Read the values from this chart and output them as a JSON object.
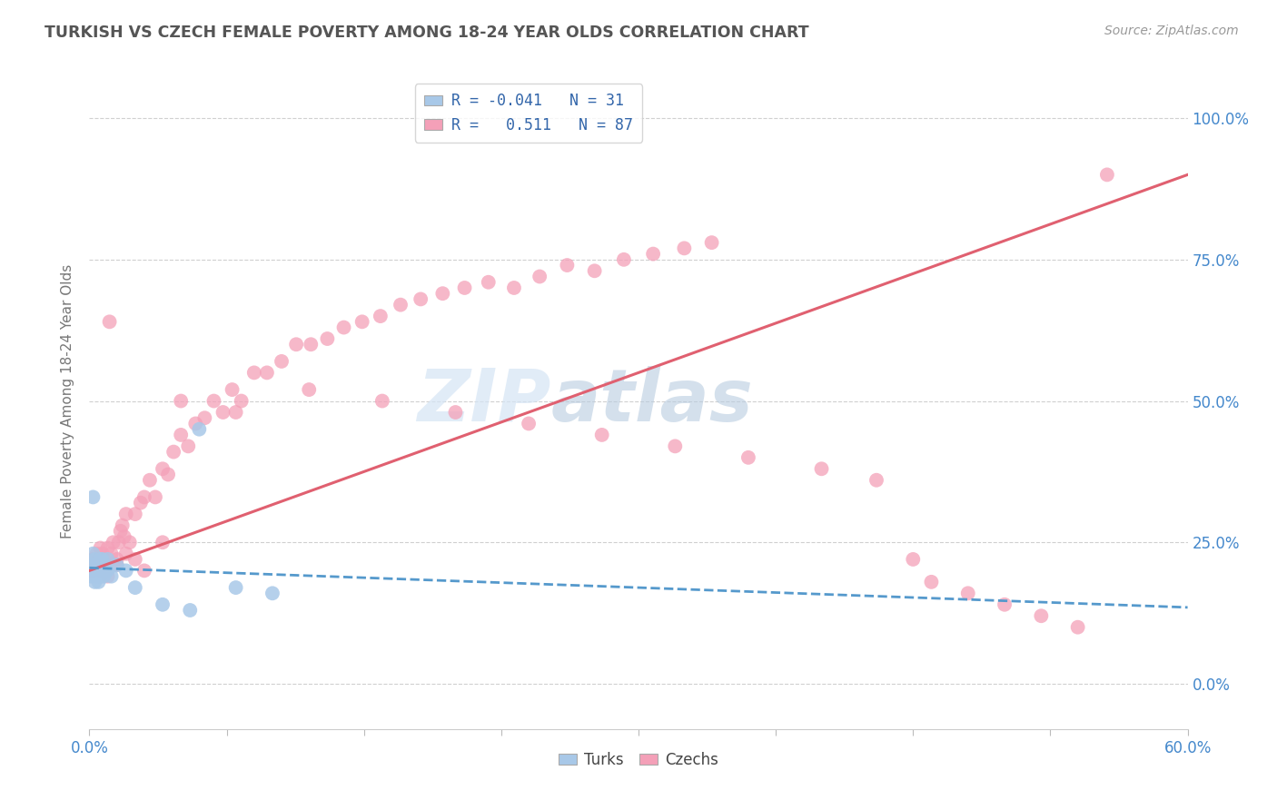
{
  "title": "TURKISH VS CZECH FEMALE POVERTY AMONG 18-24 YEAR OLDS CORRELATION CHART",
  "source": "Source: ZipAtlas.com",
  "ylabel": "Female Poverty Among 18-24 Year Olds",
  "legend_turks": "Turks",
  "legend_czechs": "Czechs",
  "R_turks": -0.041,
  "N_turks": 31,
  "R_czechs": 0.511,
  "N_czechs": 87,
  "turks_color": "#a8c8e8",
  "czechs_color": "#f4a0b8",
  "turks_line_color": "#5599cc",
  "czechs_line_color": "#e06070",
  "watermark_zip": "ZIP",
  "watermark_atlas": "atlas",
  "watermark_color_zip": "#d0dff0",
  "watermark_color_atlas": "#b8cce8",
  "background_color": "#ffffff",
  "xlim": [
    0.0,
    0.6
  ],
  "ylim": [
    -0.08,
    1.08
  ],
  "title_color": "#555555",
  "source_color": "#999999",
  "axis_label_color": "#4488cc",
  "legend_text_color": "#3366aa",
  "turks_scatter_x": [
    0.001,
    0.001,
    0.002,
    0.002,
    0.003,
    0.003,
    0.003,
    0.004,
    0.004,
    0.005,
    0.005,
    0.005,
    0.006,
    0.006,
    0.006,
    0.007,
    0.007,
    0.008,
    0.008,
    0.009,
    0.01,
    0.01,
    0.012,
    0.015,
    0.02,
    0.025,
    0.04,
    0.055,
    0.06,
    0.08,
    0.1
  ],
  "turks_scatter_y": [
    0.19,
    0.21,
    0.23,
    0.33,
    0.2,
    0.22,
    0.18,
    0.21,
    0.19,
    0.2,
    0.21,
    0.18,
    0.22,
    0.19,
    0.21,
    0.2,
    0.22,
    0.21,
    0.19,
    0.2,
    0.22,
    0.2,
    0.19,
    0.21,
    0.2,
    0.17,
    0.14,
    0.13,
    0.45,
    0.17,
    0.16
  ],
  "czechs_scatter_x": [
    0.001,
    0.002,
    0.003,
    0.004,
    0.005,
    0.006,
    0.007,
    0.008,
    0.009,
    0.01,
    0.011,
    0.012,
    0.013,
    0.015,
    0.016,
    0.017,
    0.018,
    0.019,
    0.02,
    0.022,
    0.025,
    0.028,
    0.03,
    0.033,
    0.036,
    0.04,
    0.043,
    0.046,
    0.05,
    0.054,
    0.058,
    0.063,
    0.068,
    0.073,
    0.078,
    0.083,
    0.09,
    0.097,
    0.105,
    0.113,
    0.121,
    0.13,
    0.139,
    0.149,
    0.159,
    0.17,
    0.181,
    0.193,
    0.205,
    0.218,
    0.232,
    0.246,
    0.261,
    0.276,
    0.292,
    0.308,
    0.325,
    0.34,
    0.05,
    0.08,
    0.12,
    0.16,
    0.2,
    0.24,
    0.28,
    0.32,
    0.36,
    0.4,
    0.43,
    0.45,
    0.46,
    0.48,
    0.5,
    0.52,
    0.54,
    0.556,
    0.002,
    0.004,
    0.006,
    0.008,
    0.01,
    0.015,
    0.02,
    0.025,
    0.03,
    0.04
  ],
  "czechs_scatter_y": [
    0.2,
    0.22,
    0.21,
    0.23,
    0.22,
    0.2,
    0.23,
    0.22,
    0.21,
    0.24,
    0.64,
    0.23,
    0.25,
    0.22,
    0.25,
    0.27,
    0.28,
    0.26,
    0.3,
    0.25,
    0.3,
    0.32,
    0.33,
    0.36,
    0.33,
    0.38,
    0.37,
    0.41,
    0.44,
    0.42,
    0.46,
    0.47,
    0.5,
    0.48,
    0.52,
    0.5,
    0.55,
    0.55,
    0.57,
    0.6,
    0.6,
    0.61,
    0.63,
    0.64,
    0.65,
    0.67,
    0.68,
    0.69,
    0.7,
    0.71,
    0.7,
    0.72,
    0.74,
    0.73,
    0.75,
    0.76,
    0.77,
    0.78,
    0.5,
    0.48,
    0.52,
    0.5,
    0.48,
    0.46,
    0.44,
    0.42,
    0.4,
    0.38,
    0.36,
    0.22,
    0.18,
    0.16,
    0.14,
    0.12,
    0.1,
    0.9,
    0.2,
    0.22,
    0.24,
    0.21,
    0.19,
    0.21,
    0.23,
    0.22,
    0.2,
    0.25
  ],
  "czechs_line_x0": 0.0,
  "czechs_line_y0": 0.2,
  "czechs_line_x1": 0.6,
  "czechs_line_y1": 0.9,
  "turks_line_x0": 0.0,
  "turks_line_y0": 0.205,
  "turks_line_x1": 0.6,
  "turks_line_y1": 0.135
}
